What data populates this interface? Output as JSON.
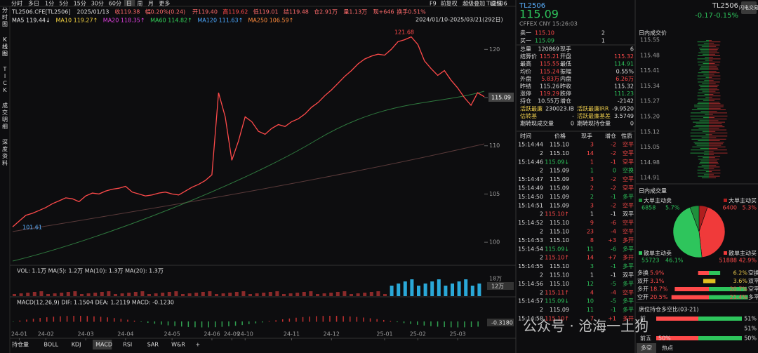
{
  "toolbar": {
    "periods": [
      "分时",
      "多日",
      "1分",
      "5分",
      "15分",
      "30分",
      "60分",
      "日",
      "周",
      "月",
      "更多"
    ],
    "right": [
      "F9",
      "前复权",
      "超级叠加",
      "画线"
    ],
    "symbol": "TL2506"
  },
  "sidebar": [
    "分时图",
    "K线图",
    "TICK",
    "成交明细",
    "深度资料"
  ],
  "info": [
    "TL2506.CFE[TL2506]",
    "2025/01/13",
    "收119.38",
    "幅0.20%(0.24)",
    "开119.40",
    "高119.62",
    "低119.01",
    "结119.48",
    "仓2.91万",
    "量1.13万",
    "现+646",
    "换手0.51%"
  ],
  "ma": [
    "MA5 119.44↓",
    "MA10 119.27↑",
    "MA20 118.35↑",
    "MA60 114.82↑",
    "MA120 111.63↑",
    "MA250 106.59↑"
  ],
  "ma_colors": [
    "#e8e8e8",
    "#f5d442",
    "#e040e0",
    "#32d35a",
    "#4aa8ff",
    "#ff8a3c"
  ],
  "chart_data": {
    "type": "line",
    "range_label": "2024/01/10-2025/03/21(292日)",
    "high_label": "121.68",
    "low_label": "101.61",
    "last_label": "115.09",
    "color": "#ff4a4a",
    "categories": [
      null,
      "24-01",
      null,
      null,
      null,
      "24-02",
      null,
      null,
      null,
      null,
      null,
      "24-03",
      null,
      null,
      null,
      null,
      null,
      "24-04",
      null,
      null,
      null,
      null,
      null,
      null,
      "24-05",
      null,
      null,
      null,
      null,
      null,
      "24-06",
      null,
      null,
      "24-09",
      null,
      "24-10",
      null,
      null,
      null,
      null,
      null,
      null,
      "24-11",
      null,
      null,
      null,
      null,
      null,
      "24-12",
      null,
      null,
      null,
      null,
      null,
      null,
      null,
      "25-01",
      null,
      null,
      null,
      null,
      "25-02",
      null,
      null,
      null,
      null,
      null,
      "25-03",
      null,
      null,
      null,
      null
    ],
    "values": [
      101.6,
      102.2,
      102.8,
      103.0,
      103.3,
      103.6,
      104.0,
      104.3,
      104.6,
      104.5,
      104.2,
      104.8,
      105.1,
      105.0,
      105.3,
      105.5,
      105.6,
      105.8,
      105.2,
      105.0,
      104.8,
      104.9,
      105.1,
      105.2,
      105.0,
      104.9,
      105.3,
      105.7,
      106.0,
      106.4,
      107.0,
      115.5,
      113.0,
      108.5,
      110.5,
      113.0,
      112.5,
      111.5,
      111.2,
      111.8,
      112.2,
      112.0,
      112.5,
      112.8,
      113.3,
      114.0,
      114.5,
      115.2,
      115.8,
      116.5,
      117.2,
      117.8,
      118.5,
      119.0,
      119.3,
      119.5,
      119.4,
      120.0,
      120.8,
      121.0,
      121.3,
      120.5,
      118.8,
      118.0,
      117.3,
      117.8,
      116.8,
      116.0,
      115.0,
      114.2,
      115.5,
      115.09
    ],
    "ylim": [
      97.9,
      122.5
    ],
    "yticks": [
      100,
      105,
      110,
      115,
      120
    ]
  },
  "volume": {
    "label": "VOL: 1.1万 MA(5): 1.2万 MA(10): 1.3万 MA(20): 1.3万",
    "axis": [
      "18万",
      "12万"
    ]
  },
  "macd": {
    "label": "MACD(12,26,9) DIF: 1.1504 DEA: 1.2119 MACD: -0.1230",
    "axis": "-0.3180"
  },
  "bottom_tabs": [
    "持仓量",
    "BOLL",
    "KDJ",
    "MACD",
    "RSI",
    "SAR",
    "W&R",
    "+"
  ],
  "quote": {
    "symbol": "TL2506",
    "price": "115.09",
    "change": "-0.17",
    "change_pct": "-0.15%",
    "exchange": "CFFEX CNY 15:26:03",
    "button": "闪电交易",
    "book": [
      [
        "卖一",
        "115.10",
        "2"
      ],
      [
        "买一",
        "115.09",
        "1"
      ]
    ],
    "stats": [
      [
        "总量",
        "120869",
        "现手",
        "6"
      ],
      [
        "结算价",
        "115.21",
        "开盘",
        "115.32"
      ],
      [
        "最高",
        "115.55",
        "最低",
        "114.91"
      ],
      [
        "均价",
        "115.24",
        "振幅",
        "0.55%"
      ],
      [
        "外盘",
        "5.83万",
        "内盘",
        "6.26万"
      ],
      [
        "昨结",
        "115.26",
        "昨收",
        "115.32"
      ],
      [
        "涨停",
        "119.29",
        "跌停",
        "111.23"
      ],
      [
        "持仓",
        "10.55万",
        "增仓",
        "-2142"
      ],
      [
        "活跃最廉",
        "230023.IB",
        "活跃最廉IRR",
        "-9.9520"
      ],
      [
        "估转基",
        "-",
        "活跃最廉基差",
        "3.5749"
      ],
      [
        "期转现成交量",
        "0",
        "期转现持仓量",
        "0"
      ]
    ]
  },
  "trades": {
    "header": [
      "时间",
      "价格",
      "现手",
      "增仓",
      "性质"
    ],
    "rows": [
      [
        "15:14:44",
        "115.10",
        "3",
        "-2",
        "空平"
      ],
      [
        "2",
        "115.10",
        "14",
        "-2",
        "空平"
      ],
      [
        "15:14:46",
        "115.09↓",
        "1",
        "-1",
        "空平"
      ],
      [
        "2",
        "115.09",
        "1",
        "0",
        "空换"
      ],
      [
        "15:14:47",
        "115.09",
        "3",
        "-2",
        "空平"
      ],
      [
        "15:14:49",
        "115.09",
        "2",
        "-2",
        "空平"
      ],
      [
        "15:14:50",
        "115.09",
        "2",
        "-1",
        "多平"
      ],
      [
        "15:14:51",
        "115.09",
        "3",
        "-2",
        "空平"
      ],
      [
        "2",
        "115.10↑",
        "1",
        "-1",
        "双平"
      ],
      [
        "15:14:52",
        "115.10",
        "9",
        "-6",
        "空平"
      ],
      [
        "2",
        "115.10",
        "23",
        "-4",
        "空平"
      ],
      [
        "15:14:53",
        "115.10",
        "8",
        "+3",
        "多开"
      ],
      [
        "15:14:54",
        "115.09↓",
        "11",
        "-6",
        "多平"
      ],
      [
        "2",
        "115.10↑",
        "14",
        "+7",
        "多开"
      ],
      [
        "15:14:55",
        "115.10",
        "3",
        "-1",
        "多平"
      ],
      [
        "2",
        "115.10",
        "1",
        "-1",
        "双平"
      ],
      [
        "15:14:56",
        "115.10",
        "12",
        "-5",
        "多平"
      ],
      [
        "2",
        "115.11↑",
        "4",
        "-4",
        "空平"
      ],
      [
        "15:14:57",
        "115.09↓",
        "10",
        "-5",
        "多平"
      ],
      [
        "2",
        "115.09",
        "11",
        "-1",
        "多平"
      ],
      [
        "15:14:58",
        "115.10↑",
        "7",
        "+1",
        "多开"
      ]
    ]
  },
  "depth": {
    "title": "日内成交价",
    "prices": [
      "115.55",
      "115.48",
      "115.41",
      "115.34",
      "115.27",
      "115.20",
      "115.12",
      "115.05",
      "114.98",
      "114.91"
    ]
  },
  "flow": {
    "title": "日内成交量",
    "slices": [
      {
        "name": "大单主动卖",
        "value": 6858,
        "pct": "5.7%",
        "color": "#1e8f3c"
      },
      {
        "name": "大单主动买",
        "value": 6400,
        "pct": "5.3%",
        "color": "#b01e1e"
      },
      {
        "name": "散单主动卖",
        "value": 55723,
        "pct": "46.1%",
        "color": "#2ec55c"
      },
      {
        "name": "散单主动买",
        "value": 51888,
        "pct": "42.9%",
        "color": "#f03a3a"
      }
    ],
    "rows": [
      [
        "多换",
        "5.9%",
        "6.2%",
        "空换"
      ],
      [
        "双开",
        "3.1%",
        "3.6%",
        "双平"
      ],
      [
        "多开",
        "18.7%",
        "20.7%",
        "空平"
      ],
      [
        "空开",
        "20.5%",
        "21.4%",
        "多平"
      ]
    ]
  },
  "positions": {
    "title": "席位持仓多空比(03-21)",
    "rows": [
      [
        "前",
        "51%"
      ],
      [
        "51%"
      ],
      [
        "前五",
        "50%",
        "50%"
      ]
    ]
  },
  "right_tabs": [
    "多空",
    "热点"
  ],
  "watermark": "公众号 · 沧海一土狗"
}
